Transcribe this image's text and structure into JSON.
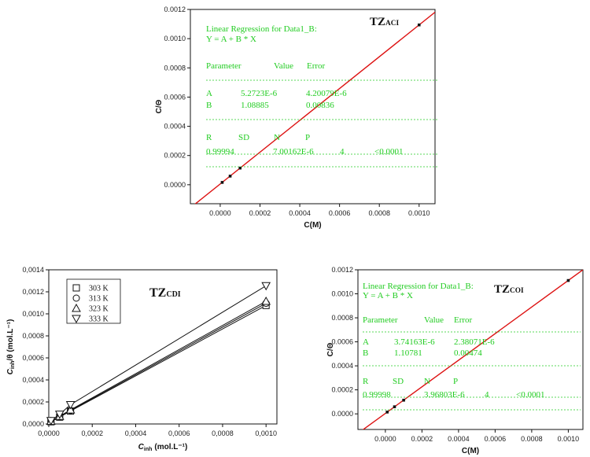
{
  "chart_data": [
    {
      "type": "scatter",
      "title": "TZ",
      "title_subscript": "ACI",
      "xlabel": "C(M)",
      "ylabel": "C/Θ",
      "xlim": [
        -0.00015,
        0.00108
      ],
      "ylim": [
        -0.00013,
        0.0012
      ],
      "x_ticks": [
        "0.0000",
        "0.0002",
        "0.0004",
        "0.0006",
        "0.0008",
        "0.0010"
      ],
      "y_ticks": [
        "0.0000",
        "0.0002",
        "0.0004",
        "0.0006",
        "0.0008",
        "0.0010",
        "0.0012"
      ],
      "series": [
        {
          "x": [
            1e-05,
            5e-05,
            0.0001,
            0.001
          ],
          "y": [
            1.6e-05,
            5.9e-05,
            0.000114,
            0.001094
          ]
        }
      ],
      "fit": {
        "intercept": 5.2723e-06,
        "slope": 1.08885
      },
      "regression": {
        "header1": "Linear Regression for Data1_B:",
        "header2": "Y = A + B * X",
        "col_parameter": "Parameter",
        "col_value": "Value",
        "col_error": "Error",
        "a_label": "A",
        "a_value": "5.2723E-6",
        "a_error": "4.20079E-6",
        "b_label": "B",
        "b_value": "1.08885",
        "b_error": "0.00836",
        "r_head": "R",
        "sd_head": "SD",
        "n_head": "N",
        "p_head": "P",
        "r_value": "0.99994",
        "sd_value": "7.00162E-6",
        "n_value": "4",
        "p_value": "<0.0001"
      }
    },
    {
      "type": "line",
      "title": "TZ",
      "title_subscript": "CDI",
      "xlabel": "C",
      "xlabel_sub": "inh",
      "xlabel_unit": "(mol.L⁻¹)",
      "ylabel": "C",
      "ylabel_sub": "inh",
      "ylabel_rest": "/θ (mol.L⁻¹)",
      "xlim": [
        0,
        0.00105
      ],
      "ylim": [
        0,
        0.0014
      ],
      "x_ticks": [
        "0,0000",
        "0,0002",
        "0,0004",
        "0,0006",
        "0,0008",
        "0,0010"
      ],
      "y_ticks": [
        "0,0000",
        "0,0002",
        "0,0004",
        "0,0006",
        "0,0008",
        "0,0010",
        "0,0012",
        "0,0014"
      ],
      "x": [
        1e-05,
        5e-05,
        0.0001,
        0.001
      ],
      "series": [
        {
          "name": "303 K",
          "marker": "square",
          "y": [
            2e-05,
            6.2e-05,
            0.000117,
            0.001076
          ]
        },
        {
          "name": "313 K",
          "marker": "circle",
          "y": [
            2.2e-05,
            6.6e-05,
            0.000122,
            0.001096
          ]
        },
        {
          "name": "323 K",
          "marker": "triangle-up",
          "y": [
            2.4e-05,
            7e-05,
            0.000128,
            0.001114
          ]
        },
        {
          "name": "333 K",
          "marker": "triangle-down",
          "y": [
            3e-05,
            8.8e-05,
            0.000175,
            0.001255
          ]
        }
      ]
    },
    {
      "type": "scatter",
      "title": "TZ",
      "title_subscript": "COI",
      "xlabel": "C(M)",
      "ylabel": "C/Θ",
      "xlim": [
        -0.00015,
        0.00108
      ],
      "ylim": [
        -0.00013,
        0.0012
      ],
      "x_ticks": [
        "0.0000",
        "0.0002",
        "0.0004",
        "0.0006",
        "0.0008",
        "0.0010"
      ],
      "y_ticks": [
        "0.0000",
        "0.0002",
        "0.0004",
        "0.0006",
        "0.0008",
        "0.0010",
        "0.0012"
      ],
      "series": [
        {
          "x": [
            1e-05,
            5e-05,
            0.0001,
            0.001
          ],
          "y": [
            1.5e-05,
            5.9e-05,
            0.000114,
            0.001111
          ]
        }
      ],
      "fit": {
        "intercept": 3.74163e-06,
        "slope": 1.10781
      },
      "regression": {
        "header1": "Linear Regression for Data1_B:",
        "header2": "Y = A + B * X",
        "col_parameter": "Parameter",
        "col_value": "Value",
        "col_error": "Error",
        "a_label": "A",
        "a_value": "3.74163E-6",
        "a_error": "2.38071E-6",
        "b_label": "B",
        "b_value": "1.10781",
        "b_error": "0.00474",
        "r_head": "R",
        "sd_head": "SD",
        "n_head": "N",
        "p_head": "P",
        "r_value": "0.99998",
        "sd_value": "3.96803E-6",
        "n_value": "4",
        "p_value": "<0.0001"
      }
    }
  ]
}
